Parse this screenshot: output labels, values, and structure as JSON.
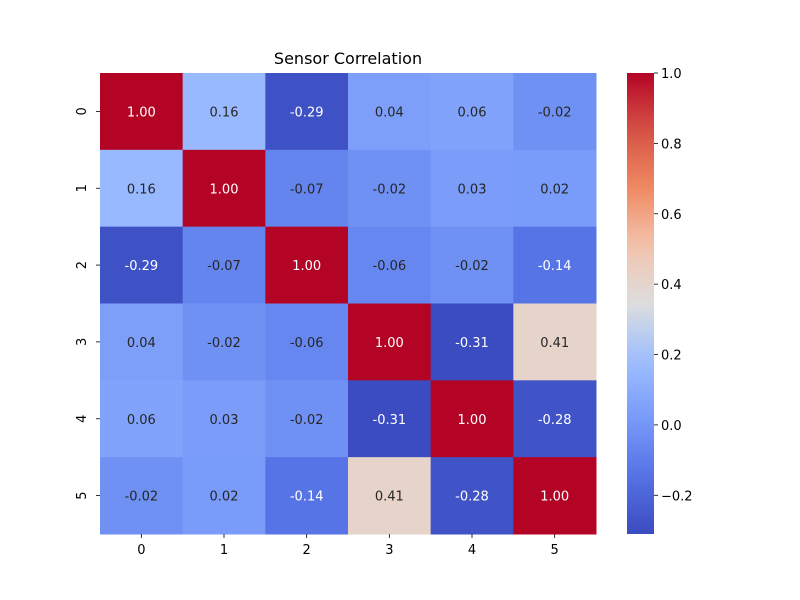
{
  "chart_data": {
    "type": "heatmap",
    "title": "Sensor Correlation",
    "x_labels": [
      "0",
      "1",
      "2",
      "3",
      "4",
      "5"
    ],
    "y_labels": [
      "0",
      "1",
      "2",
      "3",
      "4",
      "5"
    ],
    "values": [
      [
        1.0,
        0.16,
        -0.29,
        0.04,
        0.06,
        -0.02
      ],
      [
        0.16,
        1.0,
        -0.07,
        -0.02,
        0.03,
        0.02
      ],
      [
        -0.29,
        -0.07,
        1.0,
        -0.06,
        -0.02,
        -0.14
      ],
      [
        0.04,
        -0.02,
        -0.06,
        1.0,
        -0.31,
        0.41
      ],
      [
        0.06,
        0.03,
        -0.02,
        -0.31,
        1.0,
        -0.28
      ],
      [
        -0.02,
        0.02,
        -0.14,
        0.41,
        -0.28,
        1.0
      ]
    ],
    "cell_labels": [
      [
        "1.00",
        "0.16",
        "-0.29",
        "0.04",
        "0.06",
        "-0.02"
      ],
      [
        "0.16",
        "1.00",
        "-0.07",
        "-0.02",
        "0.03",
        "0.02"
      ],
      [
        "-0.29",
        "-0.07",
        "1.00",
        "-0.06",
        "-0.02",
        "-0.14"
      ],
      [
        "0.04",
        "-0.02",
        "-0.06",
        "1.00",
        "-0.31",
        "0.41"
      ],
      [
        "0.06",
        "0.03",
        "-0.02",
        "-0.31",
        "1.00",
        "-0.28"
      ],
      [
        "-0.02",
        "0.02",
        "-0.14",
        "0.41",
        "-0.28",
        "1.00"
      ]
    ],
    "colormap": "coolwarm",
    "colorbar": {
      "vmin": -0.31,
      "vmax": 1.0,
      "ticks": [
        -0.2,
        0.0,
        0.2,
        0.4,
        0.6,
        0.8,
        1.0
      ],
      "tick_labels": [
        "−0.2",
        "0.0",
        "0.2",
        "0.4",
        "0.6",
        "0.8",
        "1.0"
      ]
    },
    "grid": false
  }
}
